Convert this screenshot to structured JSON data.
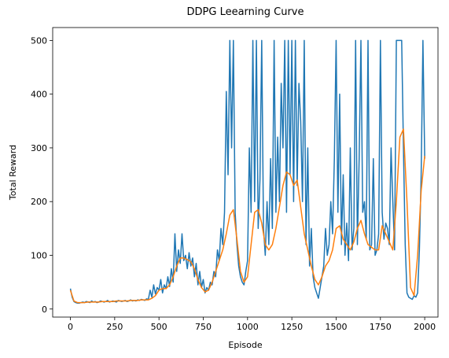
{
  "chart_data": {
    "type": "line",
    "title": "DDPG Leearning Curve",
    "xlabel": "Episode",
    "ylabel": "Total Reward",
    "xlim": [
      -100,
      2075
    ],
    "ylim": [
      -15,
      524
    ],
    "xticks": [
      0,
      250,
      500,
      750,
      1000,
      1250,
      1500,
      1750,
      2000
    ],
    "yticks": [
      0,
      100,
      200,
      300,
      400,
      500
    ],
    "grid": false,
    "series": [
      {
        "color": "#1f77b4",
        "x": [
          0,
          10,
          20,
          30,
          40,
          50,
          60,
          70,
          80,
          90,
          100,
          110,
          120,
          130,
          140,
          150,
          160,
          170,
          180,
          190,
          200,
          210,
          220,
          230,
          240,
          250,
          260,
          270,
          280,
          290,
          300,
          310,
          320,
          330,
          340,
          350,
          360,
          370,
          380,
          390,
          400,
          410,
          420,
          430,
          440,
          450,
          460,
          470,
          480,
          490,
          500,
          510,
          520,
          530,
          540,
          550,
          560,
          570,
          580,
          590,
          600,
          610,
          620,
          630,
          640,
          650,
          660,
          670,
          680,
          690,
          700,
          710,
          720,
          730,
          740,
          750,
          760,
          770,
          780,
          790,
          800,
          810,
          820,
          830,
          840,
          850,
          860,
          870,
          880,
          890,
          900,
          910,
          920,
          930,
          940,
          950,
          960,
          970,
          980,
          990,
          1000,
          1010,
          1020,
          1030,
          1040,
          1050,
          1060,
          1070,
          1080,
          1090,
          1100,
          1110,
          1120,
          1130,
          1140,
          1150,
          1160,
          1170,
          1180,
          1190,
          1200,
          1210,
          1220,
          1230,
          1240,
          1250,
          1260,
          1270,
          1280,
          1290,
          1300,
          1310,
          1320,
          1330,
          1340,
          1350,
          1360,
          1370,
          1380,
          1390,
          1400,
          1410,
          1420,
          1430,
          1440,
          1450,
          1460,
          1470,
          1480,
          1490,
          1500,
          1510,
          1520,
          1530,
          1540,
          1550,
          1560,
          1570,
          1580,
          1590,
          1600,
          1610,
          1620,
          1630,
          1640,
          1650,
          1660,
          1670,
          1680,
          1690,
          1700,
          1710,
          1720,
          1730,
          1740,
          1750,
          1760,
          1770,
          1780,
          1790,
          1800,
          1810,
          1820,
          1830,
          1840,
          1850,
          1860,
          1870,
          1880,
          1890,
          1900,
          1910,
          1920,
          1930,
          1940,
          1950,
          1960,
          1970,
          1980,
          1990,
          2000
        ],
        "values": [
          38,
          22,
          14,
          12,
          11,
          11,
          12,
          13,
          12,
          14,
          13,
          12,
          15,
          13,
          14,
          12,
          13,
          15,
          14,
          13,
          14,
          16,
          13,
          14,
          15,
          14,
          13,
          16,
          15,
          14,
          15,
          16,
          14,
          15,
          17,
          15,
          16,
          15,
          17,
          16,
          18,
          17,
          16,
          19,
          18,
          35,
          22,
          45,
          28,
          40,
          35,
          55,
          30,
          45,
          38,
          60,
          42,
          75,
          50,
          140,
          70,
          110,
          85,
          140,
          90,
          100,
          75,
          105,
          80,
          95,
          60,
          85,
          45,
          70,
          40,
          55,
          30,
          40,
          35,
          50,
          45,
          70,
          60,
          110,
          90,
          150,
          120,
          180,
          405,
          250,
          500,
          300,
          500,
          180,
          120,
          80,
          60,
          50,
          45,
          70,
          90,
          300,
          180,
          500,
          200,
          500,
          150,
          240,
          500,
          150,
          100,
          200,
          120,
          280,
          150,
          500,
          180,
          320,
          200,
          420,
          300,
          500,
          180,
          500,
          250,
          500,
          200,
          500,
          230,
          420,
          350,
          200,
          500,
          120,
          300,
          80,
          150,
          60,
          40,
          30,
          20,
          40,
          60,
          80,
          150,
          100,
          120,
          200,
          140,
          280,
          500,
          180,
          400,
          120,
          250,
          100,
          160,
          90,
          300,
          110,
          150,
          500,
          120,
          280,
          500,
          180,
          200,
          130,
          500,
          110,
          120,
          280,
          100,
          110,
          140,
          500,
          180,
          130,
          160,
          150,
          120,
          300,
          200,
          110,
          500,
          500,
          500,
          500,
          300,
          120,
          30,
          22,
          20,
          18,
          25,
          22,
          30,
          110,
          250,
          500,
          280
        ]
      },
      {
        "color": "#ff7f0e",
        "x": [
          0,
          20,
          40,
          60,
          80,
          100,
          120,
          140,
          160,
          180,
          200,
          220,
          240,
          260,
          280,
          300,
          320,
          340,
          360,
          380,
          400,
          420,
          440,
          460,
          480,
          500,
          520,
          540,
          560,
          580,
          600,
          620,
          640,
          660,
          680,
          700,
          720,
          740,
          760,
          780,
          800,
          820,
          840,
          860,
          880,
          900,
          920,
          940,
          960,
          980,
          1000,
          1020,
          1040,
          1060,
          1080,
          1100,
          1120,
          1140,
          1160,
          1180,
          1200,
          1220,
          1240,
          1260,
          1280,
          1300,
          1320,
          1340,
          1360,
          1380,
          1400,
          1420,
          1440,
          1460,
          1480,
          1500,
          1520,
          1540,
          1560,
          1580,
          1600,
          1620,
          1640,
          1660,
          1680,
          1700,
          1720,
          1740,
          1760,
          1780,
          1800,
          1820,
          1840,
          1860,
          1880,
          1900,
          1920,
          1940,
          1960,
          1980,
          2000
        ],
        "values": [
          35,
          15,
          12,
          12,
          12,
          13,
          13,
          13,
          13,
          14,
          14,
          14,
          14,
          15,
          15,
          15,
          15,
          16,
          16,
          16,
          17,
          17,
          17,
          20,
          25,
          35,
          38,
          38,
          45,
          60,
          80,
          95,
          95,
          92,
          88,
          75,
          55,
          40,
          32,
          35,
          50,
          70,
          90,
          110,
          140,
          175,
          185,
          130,
          70,
          50,
          60,
          120,
          180,
          185,
          160,
          120,
          110,
          120,
          150,
          190,
          230,
          255,
          250,
          230,
          240,
          190,
          140,
          110,
          80,
          55,
          45,
          60,
          80,
          90,
          110,
          150,
          155,
          130,
          120,
          110,
          125,
          150,
          165,
          140,
          120,
          115,
          110,
          110,
          155,
          140,
          125,
          110,
          200,
          320,
          335,
          200,
          40,
          25,
          100,
          220,
          285
        ]
      }
    ]
  }
}
